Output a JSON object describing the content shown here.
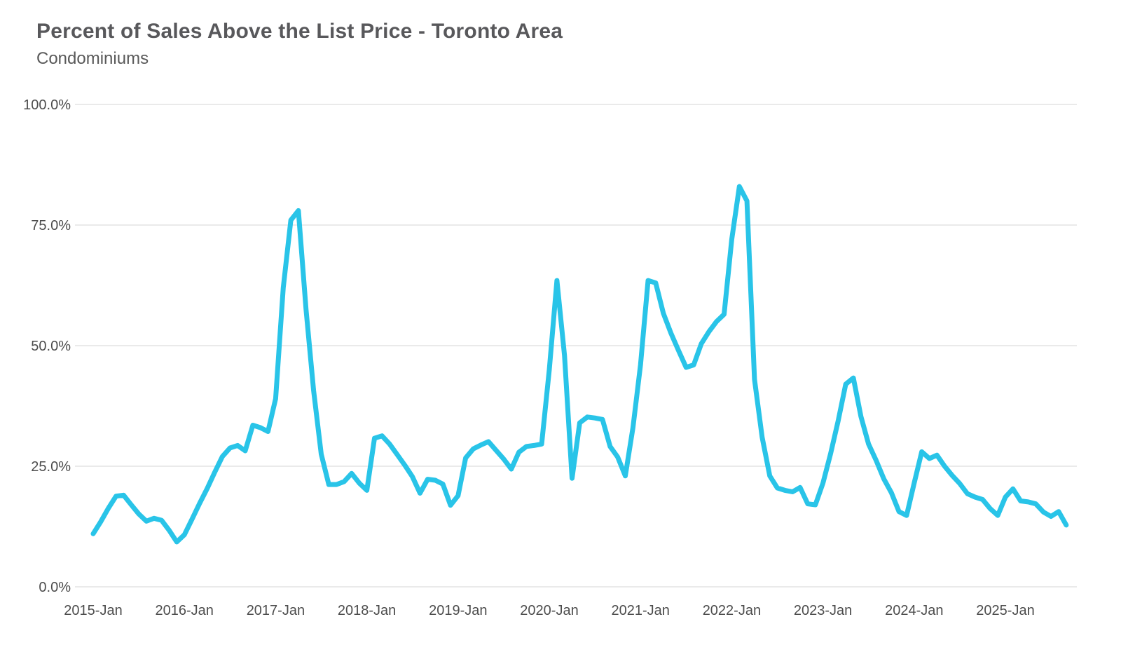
{
  "chart_data": {
    "type": "line",
    "title": "Percent of Sales Above the List Price - Toronto Area",
    "subtitle": "Condominiums",
    "ylabel": "",
    "xlabel": "",
    "ylim": [
      0,
      100
    ],
    "grid": "horizontal",
    "legend": "none",
    "colors": {
      "line": "#29c4e8",
      "gridline": "#e4e4e4",
      "title_text": "#58585b",
      "axis_text": "#4d4d4d",
      "background": "#ffffff"
    },
    "y_ticks": [
      {
        "label": "100.0%",
        "value": 100
      },
      {
        "label": "75.0%",
        "value": 75
      },
      {
        "label": "50.0%",
        "value": 50
      },
      {
        "label": "25.0%",
        "value": 25
      },
      {
        "label": "0.0%",
        "value": 0
      }
    ],
    "x_ticks": [
      {
        "label": "2015-Jan",
        "month_index": 0
      },
      {
        "label": "2016-Jan",
        "month_index": 12
      },
      {
        "label": "2017-Jan",
        "month_index": 24
      },
      {
        "label": "2018-Jan",
        "month_index": 36
      },
      {
        "label": "2019-Jan",
        "month_index": 48
      },
      {
        "label": "2020-Jan",
        "month_index": 60
      },
      {
        "label": "2021-Jan",
        "month_index": 72
      },
      {
        "label": "2022-Jan",
        "month_index": 84
      },
      {
        "label": "2023-Jan",
        "month_index": 96
      },
      {
        "label": "2024-Jan",
        "month_index": 108
      },
      {
        "label": "2025-Jan",
        "month_index": 120
      }
    ],
    "series": [
      {
        "name": "Percent of condominium sales above list price",
        "frequency": "monthly",
        "start_month": "2015-Jan",
        "end_month": "2025-Sep",
        "unit": "percent",
        "values": [
          11.0,
          13.5,
          16.3,
          18.8,
          19.0,
          17.0,
          15.1,
          13.6,
          14.2,
          13.8,
          11.7,
          9.3,
          10.8,
          14.0,
          17.3,
          20.4,
          23.8,
          27.0,
          28.8,
          29.3,
          28.2,
          33.5,
          33.0,
          32.2,
          39.0,
          62.0,
          76.0,
          78.0,
          57.5,
          40.7,
          27.5,
          21.2,
          21.2,
          21.8,
          23.5,
          21.5,
          20.0,
          30.8,
          31.3,
          29.6,
          27.4,
          25.2,
          22.8,
          19.4,
          22.3,
          22.1,
          21.3,
          16.9,
          18.9,
          26.7,
          28.6,
          29.4,
          30.1,
          28.3,
          26.5,
          24.4,
          27.9,
          29.1,
          29.3,
          29.6,
          45.0,
          63.5,
          48.0,
          22.5,
          34.0,
          35.2,
          35.0,
          34.7,
          29.1,
          26.9,
          23.0,
          33.0,
          46.0,
          63.5,
          63.0,
          56.7,
          52.6,
          49.0,
          45.5,
          46.0,
          50.4,
          52.9,
          55.0,
          56.5,
          72.0,
          83.0,
          80.0,
          43.0,
          31.0,
          23.0,
          20.5,
          20.0,
          19.7,
          20.6,
          17.2,
          17.0,
          21.5,
          27.6,
          34.4,
          42.0,
          43.3,
          35.3,
          29.6,
          26.2,
          22.4,
          19.5,
          15.6,
          14.8,
          21.5,
          28.0,
          26.6,
          27.3,
          25.0,
          23.1,
          21.4,
          19.3,
          18.6,
          18.1,
          16.2,
          14.8,
          18.6,
          20.3,
          17.8,
          17.6,
          17.2,
          15.5,
          14.6,
          15.6,
          12.8
        ]
      }
    ]
  }
}
